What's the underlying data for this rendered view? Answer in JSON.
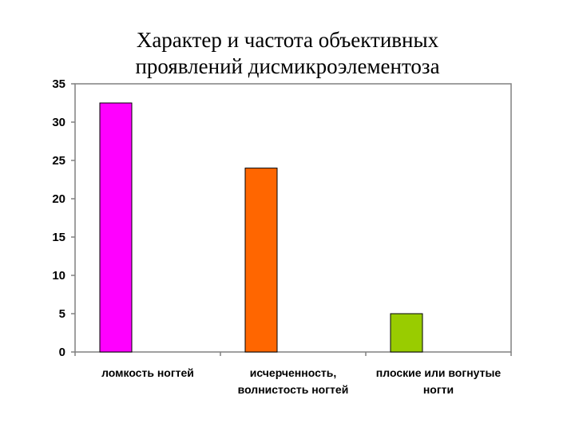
{
  "chart_data": {
    "type": "bar",
    "title_lines": [
      "Характер и частота объективных",
      "проявлений дисмикроэлементоза"
    ],
    "categories": [
      [
        "ломкость ногтей"
      ],
      [
        "исчерченность,",
        "волнистость ногтей"
      ],
      [
        "плоские или вогнутые",
        "ногти"
      ]
    ],
    "values": [
      32.5,
      24,
      5
    ],
    "colors": [
      "#FF00FF",
      "#FF6600",
      "#99CC00"
    ],
    "ylim": [
      0,
      35
    ],
    "yticks": [
      0,
      5,
      10,
      15,
      20,
      25,
      30,
      35
    ],
    "grid": false,
    "legend": "none"
  }
}
